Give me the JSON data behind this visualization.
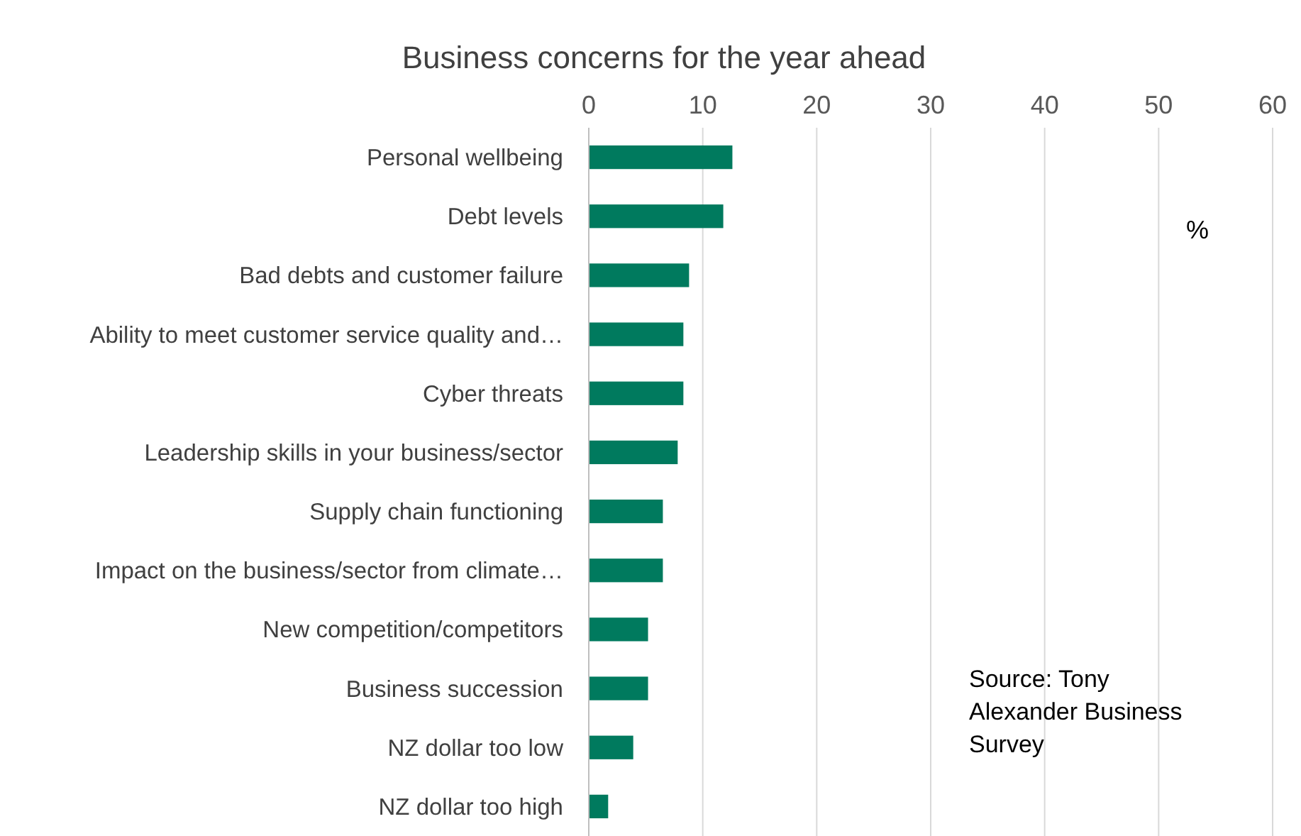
{
  "chart_data": {
    "type": "bar",
    "orientation": "horizontal",
    "title": "Business concerns for the year ahead",
    "categories": [
      "Personal wellbeing",
      "Debt levels",
      "Bad debts and customer failure",
      "Ability to meet customer service quality and…",
      "Cyber threats",
      "Leadership skills in your business/sector",
      "Supply chain functioning",
      "Impact on the business/sector from climate…",
      "New competition/competitors",
      "Business succession",
      "NZ dollar too low",
      "NZ dollar too high"
    ],
    "values": [
      12.6,
      11.8,
      8.8,
      8.3,
      8.3,
      7.8,
      6.5,
      6.5,
      5.2,
      5.2,
      3.9,
      1.7
    ],
    "color": "#007a5e",
    "xlim": [
      0,
      60
    ],
    "xticks": [
      0,
      10,
      20,
      30,
      40,
      50,
      60
    ],
    "grid": "x",
    "annotations": [
      "%",
      "Source: Tony Alexander Business Survey"
    ]
  }
}
